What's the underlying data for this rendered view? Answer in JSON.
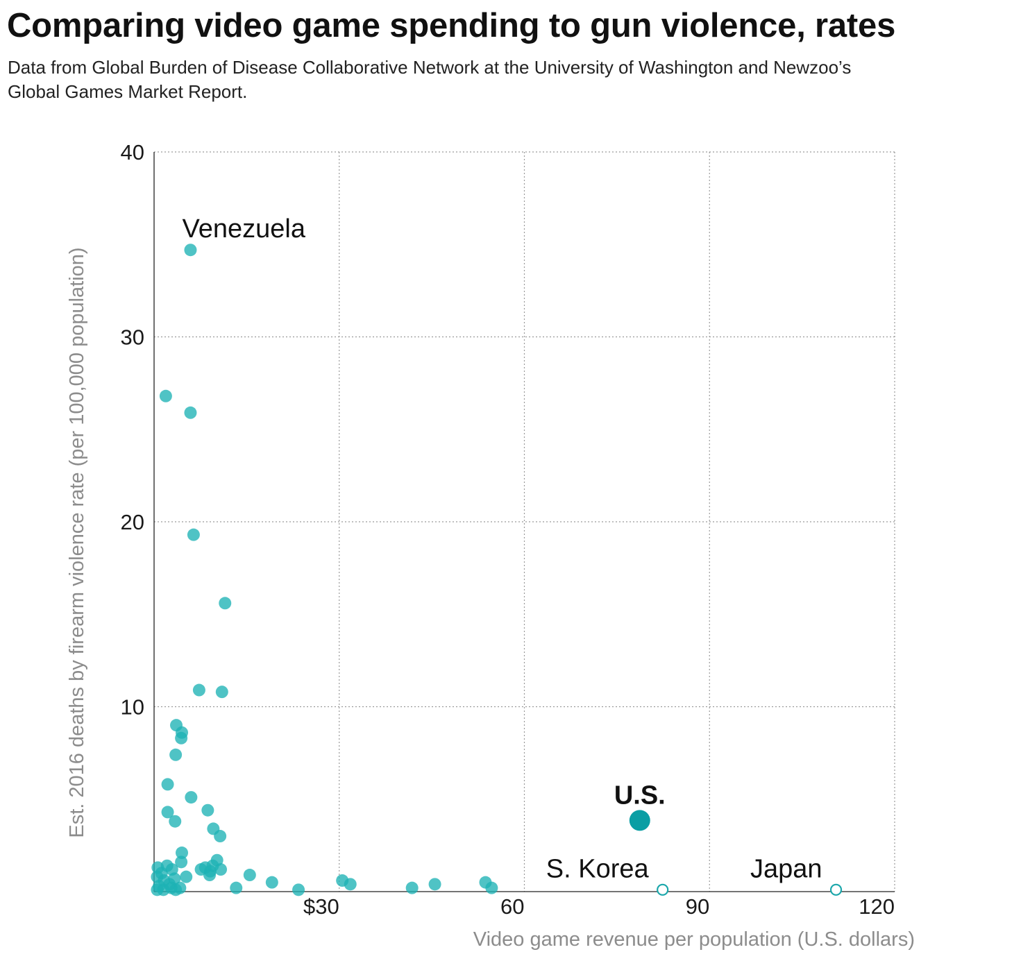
{
  "header": {
    "title": "Comparing video game spending to gun violence, rates",
    "subtitle": "Data from Global Burden of Disease Collaborative Network at the University of Washington and Newzoo’s Global Games Market Report."
  },
  "colors": {
    "dot": "#1eb2b5",
    "highlight": "#0a9ea4",
    "hollow_stroke": "#1ba7ab",
    "axis_title": "#8c8c8c"
  },
  "chart_data": {
    "type": "scatter",
    "title": "Comparing video game spending to gun violence, rates",
    "xlabel": "Video game revenue per population (U.S. dollars)",
    "ylabel": "Est. 2016 deaths by firearm violence rate (per 100,000 population)",
    "xlim": [
      0,
      120
    ],
    "ylim": [
      0,
      40
    ],
    "x_ticks": [
      {
        "value": 30,
        "label": "$30"
      },
      {
        "value": 60,
        "label": "60"
      },
      {
        "value": 90,
        "label": "90"
      },
      {
        "value": 120,
        "label": "120"
      }
    ],
    "y_ticks": [
      {
        "value": 10,
        "label": "10"
      },
      {
        "value": 20,
        "label": "20"
      },
      {
        "value": 30,
        "label": "30"
      },
      {
        "value": 40,
        "label": "40"
      }
    ],
    "grid": true,
    "points": [
      {
        "x": 5.9,
        "y": 34.7,
        "label": "Venezuela"
      },
      {
        "x": 1.9,
        "y": 26.8
      },
      {
        "x": 5.9,
        "y": 25.9
      },
      {
        "x": 6.4,
        "y": 19.3
      },
      {
        "x": 11.5,
        "y": 15.6
      },
      {
        "x": 7.3,
        "y": 10.9
      },
      {
        "x": 11.0,
        "y": 10.8
      },
      {
        "x": 3.6,
        "y": 9.0
      },
      {
        "x": 4.5,
        "y": 8.6
      },
      {
        "x": 4.4,
        "y": 8.3
      },
      {
        "x": 3.5,
        "y": 7.4
      },
      {
        "x": 2.2,
        "y": 5.8
      },
      {
        "x": 6.0,
        "y": 5.1
      },
      {
        "x": 2.2,
        "y": 4.3
      },
      {
        "x": 8.7,
        "y": 4.4
      },
      {
        "x": 3.4,
        "y": 3.8
      },
      {
        "x": 9.6,
        "y": 3.4
      },
      {
        "x": 10.7,
        "y": 3.0
      },
      {
        "x": 4.5,
        "y": 2.1
      },
      {
        "x": 4.4,
        "y": 1.6
      },
      {
        "x": 10.2,
        "y": 1.7
      },
      {
        "x": 7.6,
        "y": 1.2
      },
      {
        "x": 8.3,
        "y": 1.3
      },
      {
        "x": 9.1,
        "y": 1.1
      },
      {
        "x": 9.5,
        "y": 1.4
      },
      {
        "x": 10.8,
        "y": 1.2
      },
      {
        "x": 9.0,
        "y": 0.9
      },
      {
        "x": 0.6,
        "y": 1.3
      },
      {
        "x": 2.1,
        "y": 1.4
      },
      {
        "x": 1.2,
        "y": 1.0
      },
      {
        "x": 2.9,
        "y": 1.2
      },
      {
        "x": 0.5,
        "y": 0.8
      },
      {
        "x": 1.6,
        "y": 0.6
      },
      {
        "x": 2.5,
        "y": 0.4
      },
      {
        "x": 3.3,
        "y": 0.7
      },
      {
        "x": 5.2,
        "y": 0.8
      },
      {
        "x": 0.8,
        "y": 0.3
      },
      {
        "x": 1.5,
        "y": 0.1
      },
      {
        "x": 2.8,
        "y": 0.2
      },
      {
        "x": 3.5,
        "y": 0.1
      },
      {
        "x": 4.2,
        "y": 0.2
      },
      {
        "x": 0.5,
        "y": 0.1
      },
      {
        "x": 15.5,
        "y": 0.9
      },
      {
        "x": 13.3,
        "y": 0.2
      },
      {
        "x": 19.1,
        "y": 0.5
      },
      {
        "x": 23.4,
        "y": 0.1
      },
      {
        "x": 30.5,
        "y": 0.6
      },
      {
        "x": 31.8,
        "y": 0.4
      },
      {
        "x": 41.8,
        "y": 0.2
      },
      {
        "x": 45.5,
        "y": 0.4
      },
      {
        "x": 53.7,
        "y": 0.5
      },
      {
        "x": 54.7,
        "y": 0.2
      },
      {
        "x": 78.7,
        "y": 3.85,
        "label": "U.S.",
        "style": "highlight"
      },
      {
        "x": 82.4,
        "y": 0.1,
        "label": "S. Korea",
        "style": "hollow"
      },
      {
        "x": 110.5,
        "y": 0.1,
        "label": "Japan",
        "style": "hollow"
      }
    ]
  }
}
